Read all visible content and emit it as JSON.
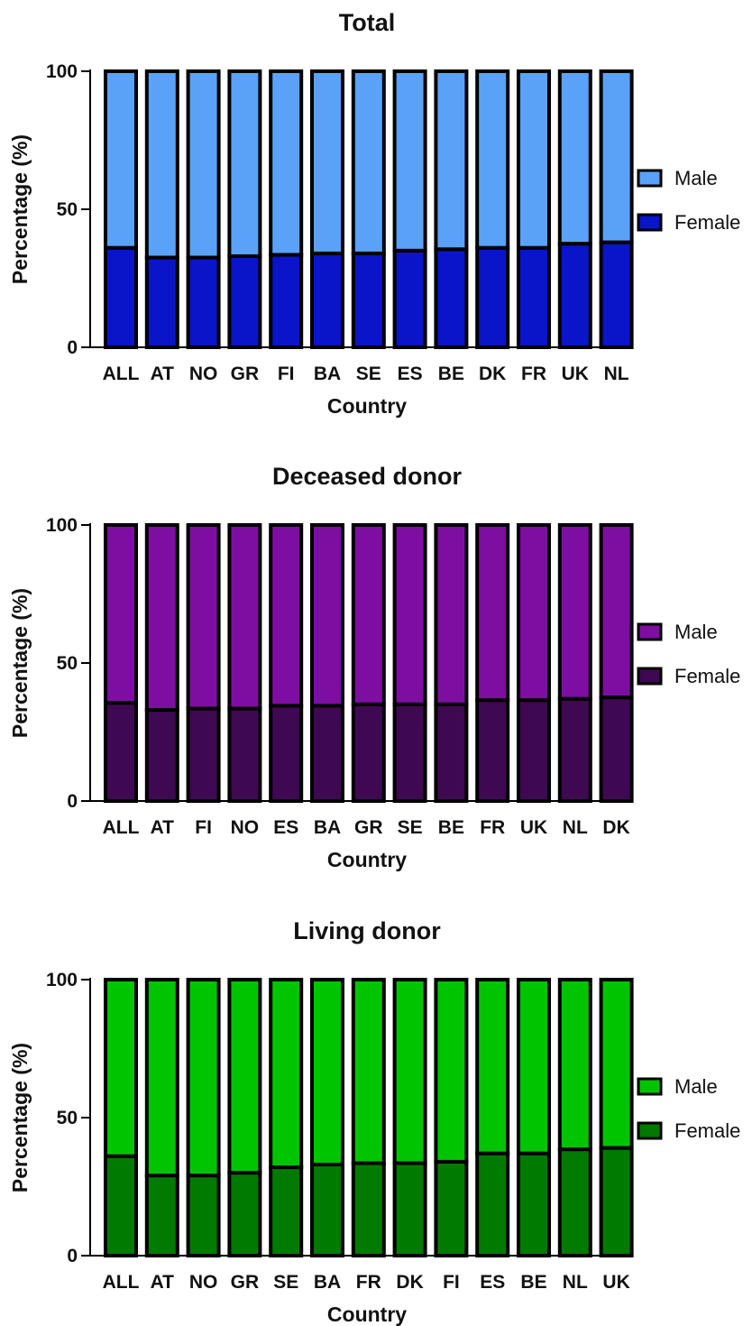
{
  "chart_data": [
    {
      "type": "bar",
      "stacked": true,
      "title": "Total",
      "xlabel": "Country",
      "ylabel": "Percentage (%)",
      "ylim": [
        0,
        100
      ],
      "yticks": [
        "0",
        "50",
        "100"
      ],
      "legend_position": "right",
      "categories": [
        "ALL",
        "AT",
        "NO",
        "GR",
        "FI",
        "BA",
        "SE",
        "ES",
        "BE",
        "DK",
        "FR",
        "UK",
        "NL"
      ],
      "series": [
        {
          "name": "Female",
          "color": "#0a14c8",
          "values": [
            36,
            32.5,
            32.5,
            33,
            33.5,
            34,
            34,
            35,
            35.5,
            36,
            36,
            37.5,
            38
          ]
        },
        {
          "name": "Male",
          "color": "#5aa2f8",
          "values": [
            64,
            67.5,
            67.5,
            67,
            66.5,
            66,
            66,
            65,
            64.5,
            64,
            64,
            62.5,
            62
          ]
        }
      ],
      "legend": [
        "Male",
        "Female"
      ]
    },
    {
      "type": "bar",
      "stacked": true,
      "title": "Deceased donor",
      "xlabel": "Country",
      "ylabel": "Percentage (%)",
      "ylim": [
        0,
        100
      ],
      "yticks": [
        "0",
        "50",
        "100"
      ],
      "legend_position": "right",
      "categories": [
        "ALL",
        "AT",
        "FI",
        "NO",
        "ES",
        "BA",
        "GR",
        "SE",
        "BE",
        "FR",
        "UK",
        "NL",
        "DK"
      ],
      "series": [
        {
          "name": "Female",
          "color": "#3f0852",
          "values": [
            35.5,
            33,
            33.5,
            33.5,
            34.5,
            34.5,
            35,
            35,
            35,
            36.5,
            36.5,
            37,
            37.5
          ]
        },
        {
          "name": "Male",
          "color": "#7e0ea2",
          "values": [
            64.5,
            67,
            66.5,
            66.5,
            65.5,
            65.5,
            65,
            65,
            65,
            63.5,
            63.5,
            63,
            62.5
          ]
        }
      ],
      "legend": [
        "Male",
        "Female"
      ]
    },
    {
      "type": "bar",
      "stacked": true,
      "title": "Living donor",
      "xlabel": "Country",
      "ylabel": "Percentage (%)",
      "ylim": [
        0,
        100
      ],
      "yticks": [
        "0",
        "50",
        "100"
      ],
      "legend_position": "right",
      "categories": [
        "ALL",
        "AT",
        "NO",
        "GR",
        "SE",
        "BA",
        "FR",
        "DK",
        "FI",
        "ES",
        "BE",
        "NL",
        "UK"
      ],
      "series": [
        {
          "name": "Female",
          "color": "#007a00",
          "values": [
            36,
            29,
            29,
            30,
            32,
            33,
            33.5,
            33.5,
            34,
            37,
            37,
            38.5,
            39
          ]
        },
        {
          "name": "Male",
          "color": "#00c400",
          "values": [
            64,
            71,
            71,
            70,
            68,
            67,
            66.5,
            66.5,
            66,
            63,
            63,
            61.5,
            61
          ]
        }
      ],
      "legend": [
        "Male",
        "Female"
      ]
    }
  ]
}
